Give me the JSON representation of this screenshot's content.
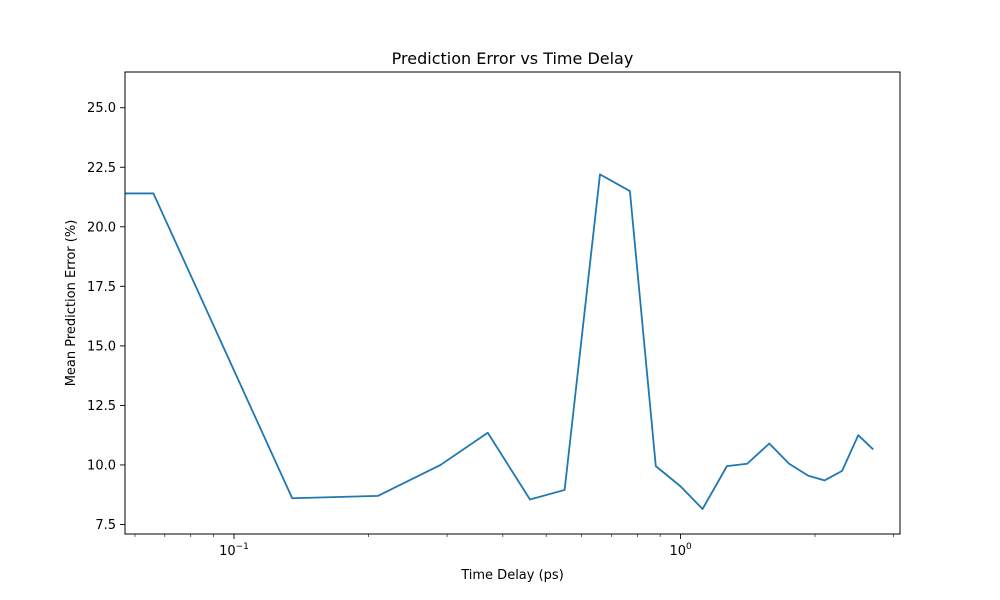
{
  "chart_data": {
    "type": "line",
    "title": "Prediction Error vs Time Delay",
    "xlabel": "Time Delay (ps)",
    "ylabel": "Mean Prediction Error (%)",
    "xscale": "log",
    "xlim": [
      0.057,
      3.1
    ],
    "ylim": [
      7.1,
      26.5
    ],
    "grid": false,
    "legend": "none",
    "x_ticks": [
      {
        "value": 0.1,
        "base": "10",
        "exponent": "−1"
      },
      {
        "value": 1,
        "base": "10",
        "exponent": "0"
      }
    ],
    "y_ticks": [
      {
        "value": 7.5,
        "label": "7.5"
      },
      {
        "value": 10.0,
        "label": "10.0"
      },
      {
        "value": 12.5,
        "label": "12.5"
      },
      {
        "value": 15.0,
        "label": "15.0"
      },
      {
        "value": 17.5,
        "label": "17.5"
      },
      {
        "value": 20.0,
        "label": "20.0"
      },
      {
        "value": 22.5,
        "label": "22.5"
      },
      {
        "value": 25.0,
        "label": "25.0"
      }
    ],
    "series": [
      {
        "color": "#1f77b4",
        "x": [
          0.05,
          0.066,
          0.135,
          0.21,
          0.29,
          0.37,
          0.46,
          0.55,
          0.66,
          0.77,
          0.88,
          1.0,
          1.12,
          1.27,
          1.41,
          1.58,
          1.75,
          1.93,
          2.1,
          2.3,
          2.5,
          2.7
        ],
        "y": [
          21.4,
          21.4,
          8.6,
          8.7,
          10.0,
          11.35,
          8.55,
          8.95,
          22.2,
          21.5,
          9.95,
          9.1,
          8.15,
          9.95,
          10.05,
          10.9,
          10.05,
          9.55,
          9.35,
          9.75,
          11.25,
          10.65
        ]
      }
    ]
  }
}
